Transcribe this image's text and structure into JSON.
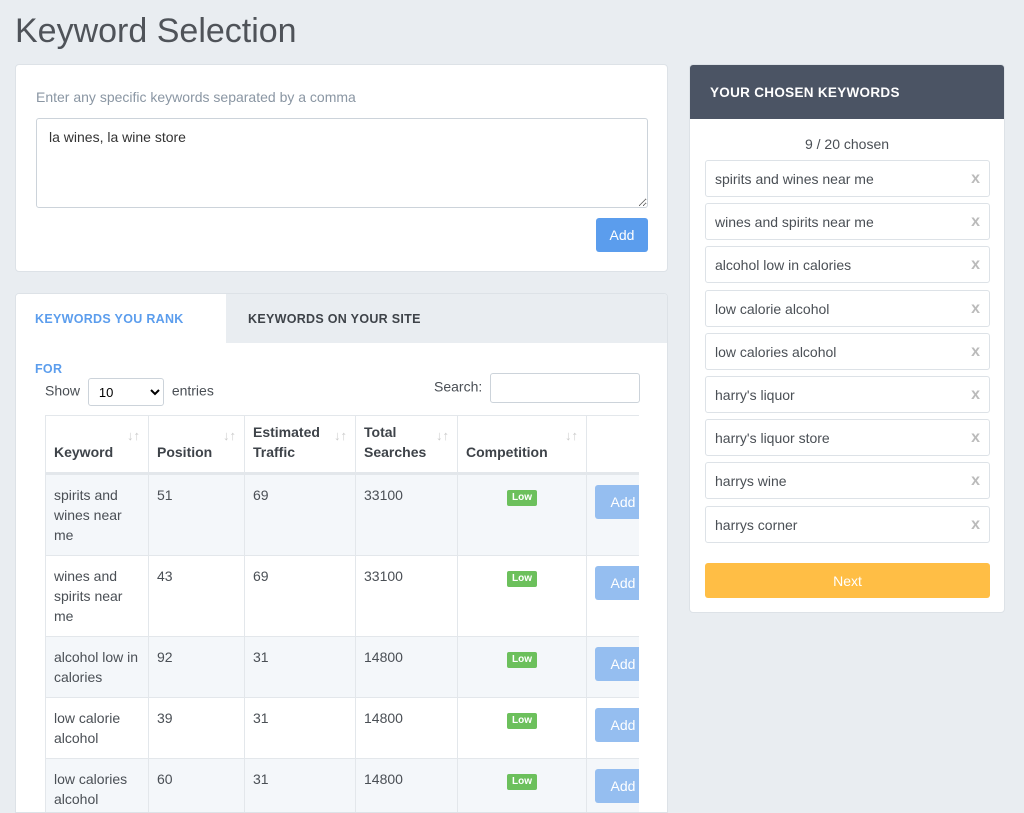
{
  "title": "Keyword Selection",
  "entry": {
    "hint": "Enter any specific keywords separated by a comma",
    "value": "la wines, la wine store",
    "add_label": "Add"
  },
  "tabs": [
    {
      "label": "KEYWORDS YOU RANK FOR",
      "active": true
    },
    {
      "label": "KEYWORDS ON YOUR SITE",
      "active": false
    }
  ],
  "table_controls": {
    "show_label": "Show",
    "page_size": "10",
    "entries_label": "entries",
    "search_label": "Search:",
    "search_value": ""
  },
  "table": {
    "columns": [
      "Keyword",
      "Position",
      "Estimated Traffic",
      "Total Searches",
      "Competition"
    ],
    "rows": [
      {
        "keyword": "spirits and wines near me",
        "position": "51",
        "traffic": "69",
        "searches": "33100",
        "competition": "Low",
        "action": "Add"
      },
      {
        "keyword": "wines and spirits near me",
        "position": "43",
        "traffic": "69",
        "searches": "33100",
        "competition": "Low",
        "action": "Add"
      },
      {
        "keyword": "alcohol low in calories",
        "position": "92",
        "traffic": "31",
        "searches": "14800",
        "competition": "Low",
        "action": "Add"
      },
      {
        "keyword": "low calorie alcohol",
        "position": "39",
        "traffic": "31",
        "searches": "14800",
        "competition": "Low",
        "action": "Add"
      },
      {
        "keyword": "low calories alcohol",
        "position": "60",
        "traffic": "31",
        "searches": "14800",
        "competition": "Low",
        "action": "Add"
      }
    ]
  },
  "chosen_panel": {
    "title": "YOUR CHOSEN KEYWORDS",
    "count": "9 / 20 chosen",
    "remove_glyph": "x",
    "items": [
      "spirits and wines near me",
      "wines and spirits near me",
      "alcohol low in calories",
      "low calorie alcohol",
      "low calories alcohol",
      "harry's liquor",
      "harry's liquor store",
      "harrys wine",
      "harrys corner"
    ],
    "next_label": "Next"
  },
  "colors": {
    "accent": "#5b9ded",
    "header": "#4b5464",
    "next": "#ffbe45",
    "low_badge": "#6cc05c"
  }
}
